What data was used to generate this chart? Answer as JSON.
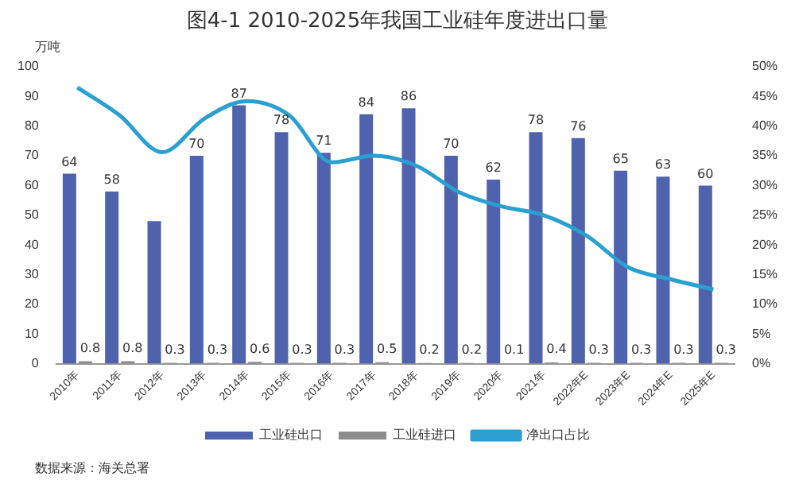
{
  "chart_data": {
    "type": "bar",
    "title": "图4-1 2010-2025年我国工业硅年度进出口量",
    "ylabel": "万吨",
    "categories": [
      "2010年",
      "2011年",
      "2012年",
      "2013年",
      "2014年",
      "2015年",
      "2016年",
      "2017年",
      "2018年",
      "2019年",
      "2020年",
      "2021年",
      "2022年E",
      "2023年E",
      "2024年E",
      "2025年E"
    ],
    "series": [
      {
        "name": "工业硅出口",
        "color": "#4f62ad",
        "values": [
          64,
          58,
          48,
          70,
          87,
          78,
          71,
          84,
          86,
          70,
          62,
          78,
          76,
          65,
          63,
          60
        ],
        "value_labels": [
          "64",
          "58",
          null,
          "70",
          "87",
          "78",
          "71",
          "84",
          "86",
          "70",
          "62",
          "78",
          "76",
          "65",
          "63",
          "60"
        ]
      },
      {
        "name": "工业硅进口",
        "color": "#8c8c8c",
        "values": [
          0.8,
          0.8,
          0.3,
          0.3,
          0.6,
          0.3,
          0.3,
          0.5,
          0.2,
          0.2,
          0.1,
          0.4,
          0.3,
          0.3,
          0.3,
          0.3
        ],
        "value_labels": [
          "0.8",
          "0.8",
          "0.3",
          "0.3",
          "0.6",
          "0.3",
          "0.3",
          "0.5",
          "0.2",
          "0.2",
          "0.1",
          "0.4",
          "0.3",
          "0.3",
          "0.3",
          "0.3"
        ]
      },
      {
        "name": "净出口占比",
        "type": "line",
        "axis": "y2",
        "color": "#2a9fd0",
        "values": [
          46.5,
          41.8,
          35.6,
          41.3,
          44.2,
          41.8,
          33.9,
          35,
          33.3,
          28.9,
          26.5,
          25,
          21.6,
          16.2,
          14.2,
          12.5
        ]
      }
    ],
    "ylim": [
      0,
      100
    ],
    "yticks": [
      0,
      10,
      20,
      30,
      40,
      50,
      60,
      70,
      80,
      90,
      100
    ],
    "y2lim": [
      0,
      50
    ],
    "y2ticks": [
      {
        "value": 0,
        "label": "0%"
      },
      {
        "value": 5,
        "label": "5%"
      },
      {
        "value": 10,
        "label": "10%"
      },
      {
        "value": 15,
        "label": "15%"
      },
      {
        "value": 20,
        "label": "20%"
      },
      {
        "value": 25,
        "label": "25%"
      },
      {
        "value": 30,
        "label": "30%"
      },
      {
        "value": 35,
        "label": "35%"
      },
      {
        "value": 40,
        "label": "40%"
      },
      {
        "value": 45,
        "label": "45%"
      },
      {
        "value": 50,
        "label": "50%"
      }
    ],
    "grid": false,
    "legend": "bottom",
    "marker": "none",
    "annotations": [
      "数据来源：海关总署"
    ]
  }
}
